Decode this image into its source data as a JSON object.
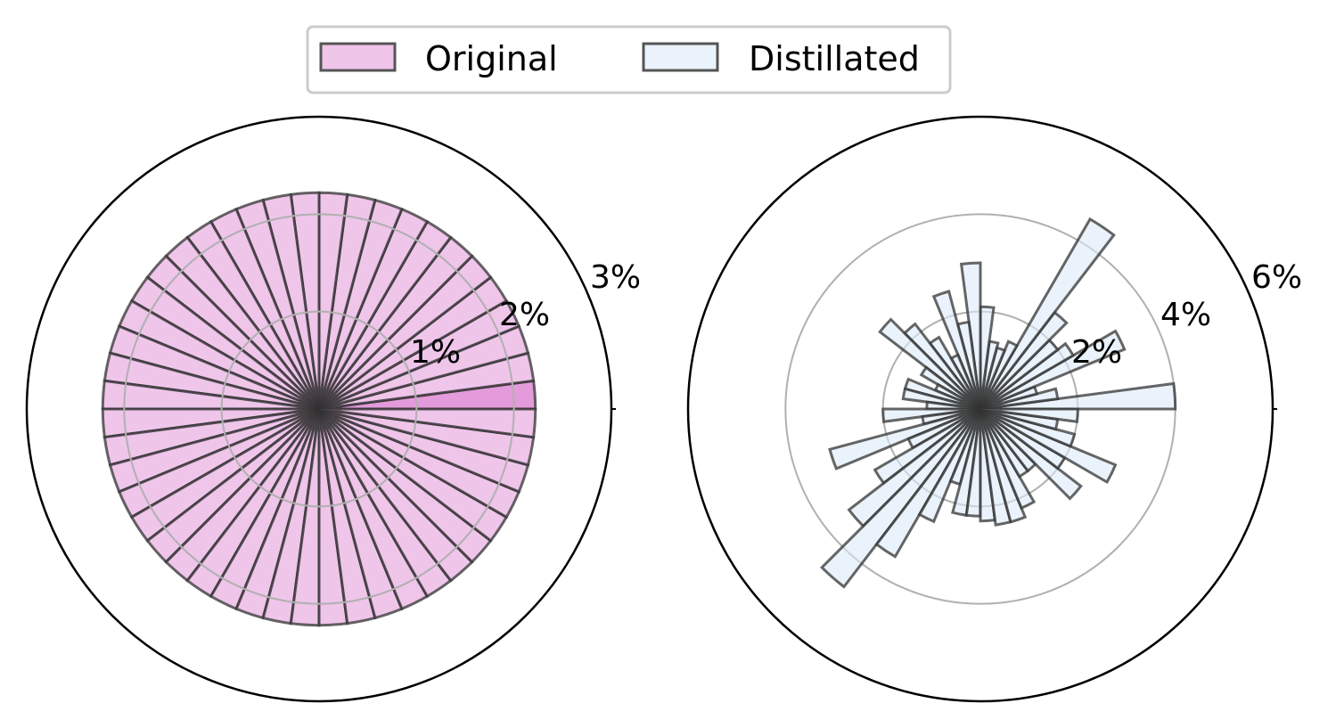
{
  "legend": {
    "placement": "top-center",
    "entries": [
      {
        "label": "Original",
        "fill": "#E7A6DE",
        "fill_opacity": 0.65
      },
      {
        "label": "Distillated",
        "fill": "#DCEBF8",
        "fill_opacity": 0.6
      }
    ]
  },
  "chart_data": [
    {
      "type": "bar",
      "subtype": "polar-bar",
      "series_name": "Original",
      "bar_color": "#E7A6DE",
      "highlight_color": "#E39BDB",
      "edge_color": "#333333",
      "bins": 48,
      "values": [
        2.22,
        2.22,
        2.22,
        2.22,
        2.22,
        2.22,
        2.22,
        2.22,
        2.22,
        2.22,
        2.22,
        2.22,
        2.22,
        2.22,
        2.22,
        2.22,
        2.22,
        2.22,
        2.22,
        2.22,
        2.22,
        2.22,
        2.22,
        2.22,
        2.22,
        2.22,
        2.22,
        2.22,
        2.22,
        2.22,
        2.22,
        2.22,
        2.22,
        2.22,
        2.22,
        2.22,
        2.22,
        2.22,
        2.22,
        2.22,
        2.22,
        2.22,
        2.22,
        2.22,
        2.22,
        2.22,
        2.22,
        2.22
      ],
      "highlight_index": 0,
      "rmax": 3,
      "rticks": [
        1,
        2,
        3
      ],
      "rtick_labels": [
        "1%",
        "2%",
        "3%"
      ],
      "grid": true
    },
    {
      "type": "bar",
      "subtype": "polar-bar",
      "series_name": "Distillated",
      "bar_color": "#DCEBF8",
      "edge_color": "#333333",
      "bins": 48,
      "values": [
        4.0,
        1.6,
        1.2,
        3.2,
        2.2,
        2.0,
        2.5,
        4.5,
        1.5,
        1.3,
        1.4,
        2.1,
        3.0,
        1.8,
        2.5,
        1.2,
        1.7,
        2.2,
        2.6,
        1.4,
        1.0,
        1.6,
        1.6,
        1.1,
        2.0,
        1.2,
        3.2,
        1.6,
        2.5,
        3.4,
        4.6,
        3.5,
        2.5,
        1.6,
        2.2,
        2.2,
        2.3,
        2.4,
        2.4,
        2.2,
        1.6,
        1.6,
        2.6,
        2.0,
        3.0,
        2.0,
        1.6,
        2.0
      ],
      "rmax": 6,
      "rticks": [
        2,
        4,
        6
      ],
      "rtick_labels": [
        "2%",
        "4%",
        "6%"
      ],
      "grid": true
    }
  ]
}
